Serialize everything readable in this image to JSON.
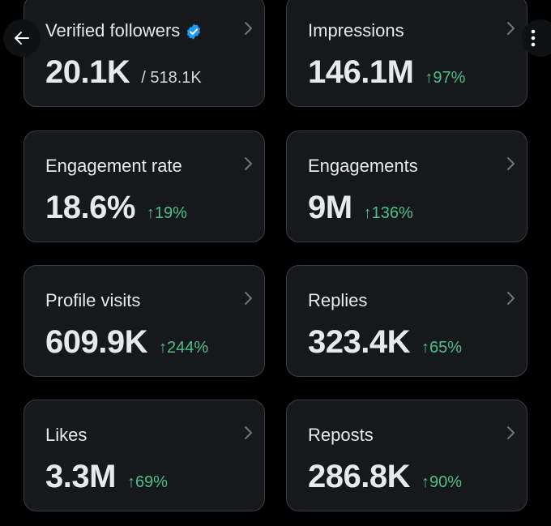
{
  "navigation": {
    "back_icon": "arrow-left-icon",
    "more_icon": "vertical-ellipsis-icon"
  },
  "colors": {
    "background": "#000000",
    "card": "#16181c",
    "card_border": "#3a3d42",
    "positive": "#4cbf8a",
    "verified": "#1d9bf0"
  },
  "cards": {
    "verified_followers": {
      "title": "Verified followers",
      "value": "20.1K",
      "total": "/ 518.1K",
      "badge_icon": "verified-badge-icon"
    },
    "impressions": {
      "title": "Impressions",
      "value": "146.1M",
      "delta": "↑97%"
    },
    "engagement_rate": {
      "title": "Engagement rate",
      "value": "18.6%",
      "delta": "↑19%"
    },
    "engagements": {
      "title": "Engagements",
      "value": "9M",
      "delta": "↑136%"
    },
    "profile_visits": {
      "title": "Profile visits",
      "value": "609.9K",
      "delta": "↑244%"
    },
    "replies": {
      "title": "Replies",
      "value": "323.4K",
      "delta": "↑65%"
    },
    "likes": {
      "title": "Likes",
      "value": "3.3M",
      "delta": "↑69%"
    },
    "reposts": {
      "title": "Reposts",
      "value": "286.8K",
      "delta": "↑90%"
    }
  }
}
